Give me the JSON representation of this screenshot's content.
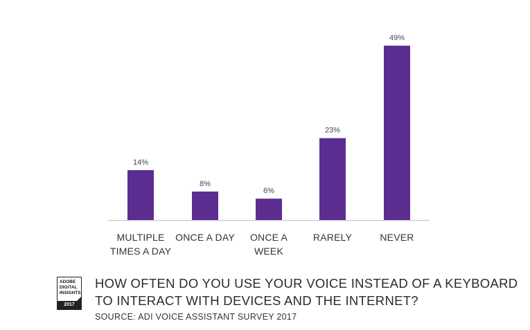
{
  "chart_data": {
    "type": "bar",
    "categories": [
      [
        "MULTIPLE",
        "TIMES A DAY"
      ],
      [
        "ONCE A DAY"
      ],
      [
        "ONCE A",
        "WEEK"
      ],
      [
        "RARELY"
      ],
      [
        "NEVER"
      ]
    ],
    "values": [
      14,
      8,
      6,
      23,
      49
    ],
    "data_labels": [
      "14%",
      "8%",
      "6%",
      "23%",
      "49%"
    ],
    "ylim": [
      0,
      49
    ],
    "bar_color": "#5c2d91",
    "grid": false,
    "legend": "none"
  },
  "footer": {
    "badge": {
      "lines": [
        "ADOBE",
        "DIGITAL",
        "INSIGHTS"
      ],
      "year": "2017"
    },
    "title_lines": [
      "HOW OFTEN DO YOU USE YOUR VOICE INSTEAD OF A KEYBOARD",
      "TO INTERACT WITH DEVICES AND THE INTERNET?"
    ],
    "source": "SOURCE: ADI VOICE ASSISTANT SURVEY 2017"
  }
}
